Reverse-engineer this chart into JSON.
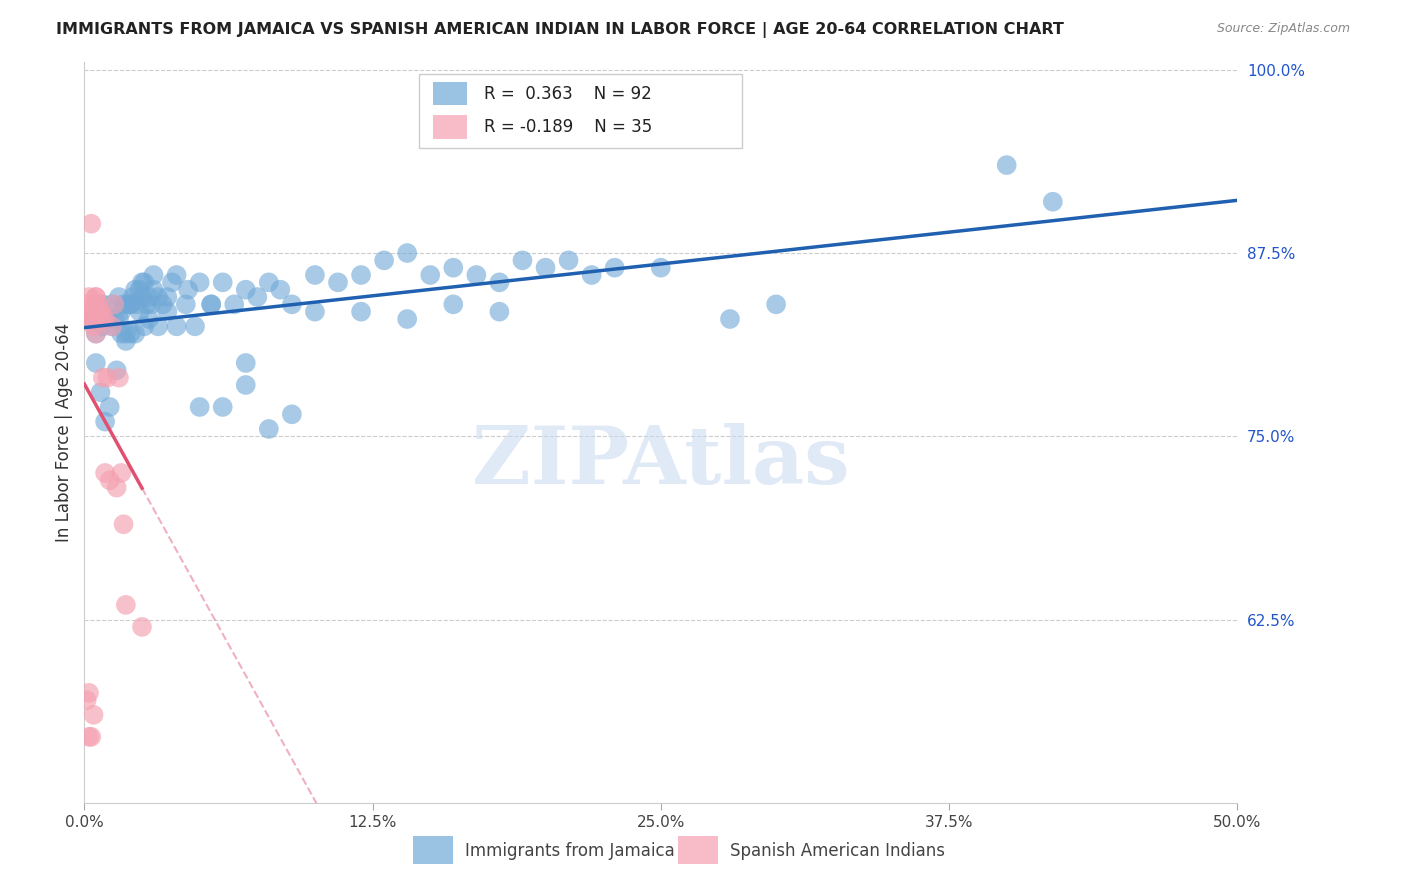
{
  "title": "IMMIGRANTS FROM JAMAICA VS SPANISH AMERICAN INDIAN IN LABOR FORCE | AGE 20-64 CORRELATION CHART",
  "source": "Source: ZipAtlas.com",
  "ylabel": "In Labor Force | Age 20-64",
  "xmin": 0.0,
  "xmax": 0.5,
  "ymin": 0.5,
  "ymax": 1.005,
  "xtick_labels": [
    "0.0%",
    "12.5%",
    "25.0%",
    "37.5%",
    "50.0%"
  ],
  "xtick_values": [
    0.0,
    0.125,
    0.25,
    0.375,
    0.5
  ],
  "ytick_labels": [
    "62.5%",
    "75.0%",
    "87.5%",
    "100.0%"
  ],
  "ytick_values": [
    0.625,
    0.75,
    0.875,
    1.0
  ],
  "r_blue": 0.363,
  "n_blue": 92,
  "r_pink": -0.189,
  "n_pink": 35,
  "blue_color": "#6fa8d6",
  "pink_color": "#f4a0b0",
  "blue_line_color": "#2060b0",
  "pink_line_color": "#e05070",
  "watermark": "ZIPAtlas",
  "watermark_color": "#c8d8f0",
  "legend_label_blue": "Immigrants from Jamaica",
  "legend_label_pink": "Spanish American Indians",
  "blue_scatter_x": [
    0.005,
    0.008,
    0.01,
    0.012,
    0.013,
    0.015,
    0.016,
    0.017,
    0.018,
    0.019,
    0.02,
    0.021,
    0.022,
    0.023,
    0.024,
    0.025,
    0.026,
    0.027,
    0.028,
    0.029,
    0.03,
    0.032,
    0.034,
    0.036,
    0.038,
    0.04,
    0.045,
    0.05,
    0.055,
    0.06,
    0.065,
    0.07,
    0.075,
    0.08,
    0.085,
    0.09,
    0.1,
    0.11,
    0.12,
    0.13,
    0.14,
    0.15,
    0.16,
    0.17,
    0.18,
    0.19,
    0.2,
    0.21,
    0.22,
    0.23,
    0.005,
    0.007,
    0.009,
    0.011,
    0.014,
    0.016,
    0.018,
    0.02,
    0.022,
    0.024,
    0.026,
    0.028,
    0.032,
    0.036,
    0.04,
    0.044,
    0.048,
    0.055,
    0.06,
    0.07,
    0.08,
    0.09,
    0.1,
    0.12,
    0.14,
    0.16,
    0.18,
    0.25,
    0.28,
    0.3,
    0.003,
    0.006,
    0.008,
    0.012,
    0.015,
    0.02,
    0.025,
    0.03,
    0.05,
    0.07,
    0.4,
    0.42
  ],
  "blue_scatter_y": [
    0.82,
    0.84,
    0.83,
    0.825,
    0.83,
    0.845,
    0.835,
    0.84,
    0.82,
    0.84,
    0.84,
    0.845,
    0.85,
    0.84,
    0.85,
    0.845,
    0.855,
    0.84,
    0.845,
    0.84,
    0.85,
    0.845,
    0.84,
    0.845,
    0.855,
    0.86,
    0.85,
    0.855,
    0.84,
    0.855,
    0.84,
    0.85,
    0.845,
    0.855,
    0.85,
    0.84,
    0.86,
    0.855,
    0.86,
    0.87,
    0.875,
    0.86,
    0.865,
    0.86,
    0.855,
    0.87,
    0.865,
    0.87,
    0.86,
    0.865,
    0.8,
    0.78,
    0.76,
    0.77,
    0.795,
    0.82,
    0.815,
    0.82,
    0.82,
    0.835,
    0.825,
    0.83,
    0.825,
    0.835,
    0.825,
    0.84,
    0.825,
    0.84,
    0.77,
    0.785,
    0.755,
    0.765,
    0.835,
    0.835,
    0.83,
    0.84,
    0.835,
    0.865,
    0.83,
    0.84,
    0.83,
    0.84,
    0.825,
    0.84,
    0.83,
    0.84,
    0.855,
    0.86,
    0.77,
    0.8,
    0.935,
    0.91
  ],
  "pink_scatter_x": [
    0.002,
    0.003,
    0.003,
    0.004,
    0.005,
    0.005,
    0.005,
    0.006,
    0.007,
    0.008,
    0.009,
    0.01,
    0.011,
    0.012,
    0.013,
    0.014,
    0.015,
    0.016,
    0.017,
    0.018,
    0.001,
    0.002,
    0.003,
    0.004,
    0.005,
    0.006,
    0.007,
    0.008,
    0.009,
    0.025,
    0.001,
    0.002,
    0.002,
    0.003,
    0.004
  ],
  "pink_scatter_y": [
    0.845,
    0.895,
    0.83,
    0.84,
    0.845,
    0.835,
    0.82,
    0.84,
    0.835,
    0.83,
    0.83,
    0.79,
    0.72,
    0.825,
    0.84,
    0.715,
    0.79,
    0.725,
    0.69,
    0.635,
    0.84,
    0.835,
    0.83,
    0.825,
    0.845,
    0.83,
    0.835,
    0.79,
    0.725,
    0.62,
    0.57,
    0.575,
    0.545,
    0.545,
    0.56
  ]
}
